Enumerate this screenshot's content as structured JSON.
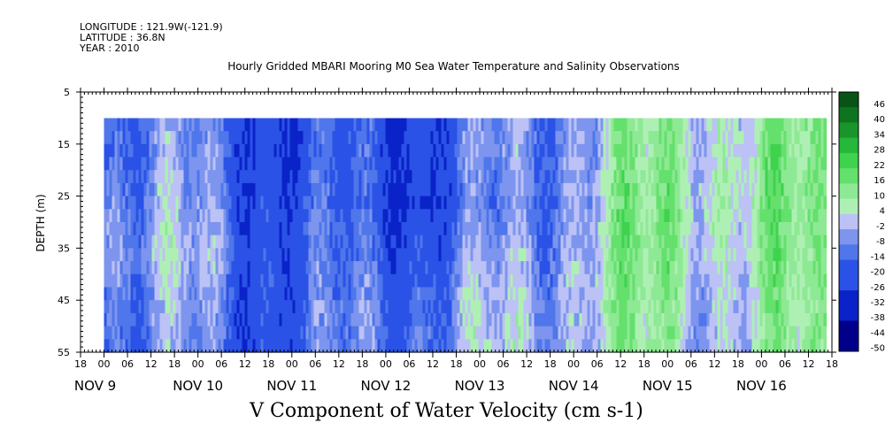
{
  "header": {
    "longitude": "LONGITUDE : 121.9W(-121.9)",
    "latitude": "LATITUDE : 36.8N",
    "year": "YEAR : 2010"
  },
  "chart_data": {
    "type": "heatmap",
    "title": "Hourly Gridded MBARI Mooring M0 Sea Water Temperature and Salinity Observations",
    "xlabel": "V Component of Water Velocity (cm s-1)",
    "ylabel": "DEPTH (m)",
    "ylim": [
      5,
      55
    ],
    "yticks": [
      5,
      15,
      25,
      35,
      45,
      55
    ],
    "data_depth_range": [
      10,
      55
    ],
    "x_hour_ticks": [
      "18",
      "00",
      "06",
      "12",
      "18",
      "00",
      "06",
      "12",
      "18",
      "00",
      "06",
      "12",
      "18",
      "00",
      "06",
      "12",
      "18",
      "00",
      "06",
      "12",
      "18",
      "00",
      "06",
      "12",
      "18",
      "00",
      "06",
      "12",
      "18",
      "00",
      "06",
      "12",
      "18"
    ],
    "x_day_labels": [
      "NOV  9",
      "NOV 10",
      "NOV 11",
      "NOV 12",
      "NOV 13",
      "NOV 14",
      "NOV 15",
      "NOV 16"
    ],
    "colorbar": {
      "levels": [
        -50,
        -44,
        -38,
        -32,
        -26,
        -20,
        -14,
        -8,
        -2,
        4,
        10,
        16,
        22,
        28,
        34,
        40,
        46
      ],
      "labels": [
        "46",
        "40",
        "34",
        "28",
        "22",
        "16",
        "10",
        "4",
        "-2",
        "-8",
        "-14",
        "-20",
        "-26",
        "-32",
        "-38",
        "-44",
        "-50"
      ],
      "negative_color": "#1a3fd6",
      "positive_color": "#1fd24a"
    },
    "mean_v_by_day_and_depth": {
      "depths": [
        15,
        25,
        35,
        45,
        55
      ],
      "days": [
        "NOV 9",
        "NOV 10",
        "NOV 11",
        "NOV 12",
        "NOV 13",
        "NOV 14",
        "NOV 15",
        "NOV 16"
      ],
      "values": [
        [
          -8,
          -16,
          -22,
          -18,
          -10,
          4,
          10,
          8
        ],
        [
          -4,
          -14,
          -20,
          -20,
          -12,
          6,
          12,
          10
        ],
        [
          0,
          -12,
          -18,
          -14,
          -8,
          8,
          10,
          8
        ],
        [
          -6,
          -14,
          -14,
          -8,
          -4,
          8,
          6,
          6
        ],
        [
          -8,
          -16,
          -16,
          -6,
          -2,
          6,
          4,
          6
        ]
      ]
    }
  }
}
